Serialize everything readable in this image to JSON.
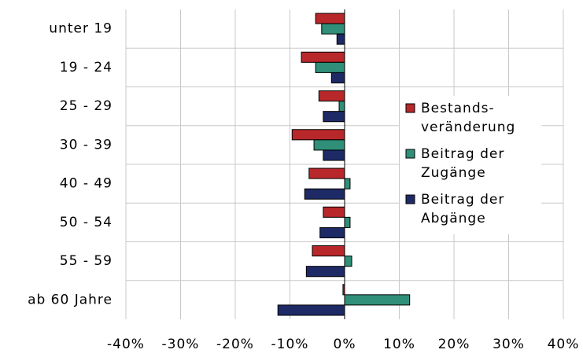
{
  "chart_data": {
    "type": "hbar",
    "categories": [
      "unter 19",
      "19 - 24",
      "25 - 29",
      "30 - 39",
      "40 - 49",
      "50 - 54",
      "55 - 59",
      "ab 60 Jahre"
    ],
    "series": [
      {
        "name": "Bestands- veränderung",
        "color": "#b8282a",
        "values": [
          -5.3,
          -7.9,
          -4.7,
          -9.6,
          -6.5,
          -3.9,
          -5.9,
          -0.3
        ]
      },
      {
        "name": "Beitrag der Zugänge",
        "color": "#2f8f78",
        "values": [
          -4.2,
          -5.3,
          -1.0,
          -5.6,
          1.0,
          1.0,
          1.3,
          11.9
        ]
      },
      {
        "name": "Beitrag der Abgänge",
        "color": "#1e2a66",
        "values": [
          -1.4,
          -2.4,
          -3.9,
          -3.9,
          -7.3,
          -4.5,
          -7.0,
          -12.2
        ]
      }
    ],
    "xlim": [
      -40,
      40
    ],
    "xticks": [
      {
        "value": -40,
        "label": "-40%"
      },
      {
        "value": -30,
        "label": "-30%"
      },
      {
        "value": -20,
        "label": "-20%"
      },
      {
        "value": -10,
        "label": "-10%"
      },
      {
        "value": 0,
        "label": "0%"
      },
      {
        "value": 10,
        "label": "10%"
      },
      {
        "value": 20,
        "label": "20%"
      },
      {
        "value": 30,
        "label": "30%"
      },
      {
        "value": 40,
        "label": "40%"
      }
    ],
    "grid": true,
    "legend": "right"
  }
}
